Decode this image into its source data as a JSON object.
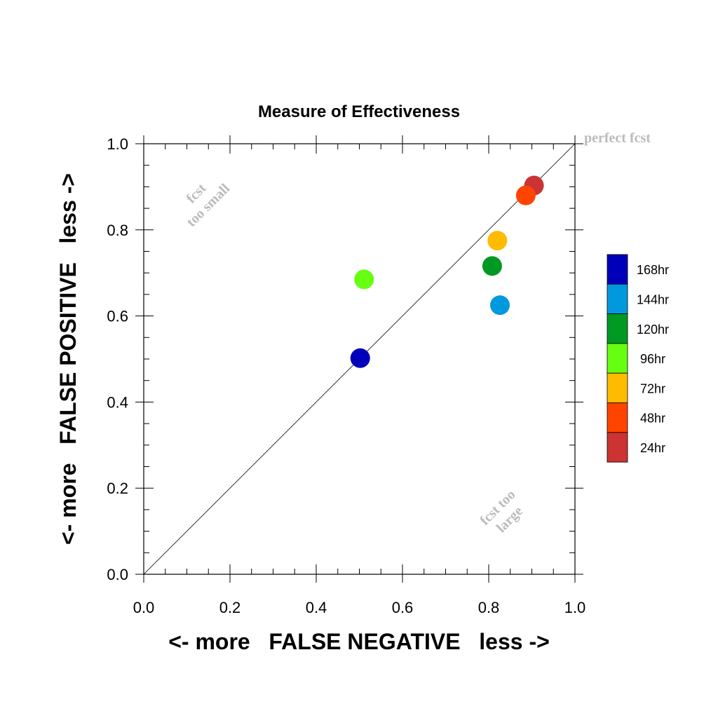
{
  "chart_data": {
    "type": "scatter",
    "title": "Measure of Effectiveness",
    "xlabel": "<- more   FALSE NEGATIVE   less ->",
    "ylabel": "<- more   FALSE POSITIVE   less ->",
    "xlim": [
      0.0,
      1.0
    ],
    "ylim": [
      0.0,
      1.0
    ],
    "xticks": [
      "0.0",
      "0.2",
      "0.4",
      "0.6",
      "0.8",
      "1.0"
    ],
    "yticks": [
      "0.0",
      "0.2",
      "0.4",
      "0.6",
      "0.8",
      "1.0"
    ],
    "grid": false,
    "reference_line": "diagonal y = x",
    "annotations": {
      "perfect": "perfect fcst",
      "too_small_1": "fcst",
      "too_small_2": "too small",
      "too_large_1": "fcst too",
      "too_large_2": "large"
    },
    "legend_position": "right",
    "series": [
      {
        "name": "168hr",
        "color": "#0000bb",
        "x": 0.502,
        "y": 0.502
      },
      {
        "name": "144hr",
        "color": "#0099dd",
        "x": 0.826,
        "y": 0.625
      },
      {
        "name": "120hr",
        "color": "#009922",
        "x": 0.808,
        "y": 0.716
      },
      {
        "name": "96hr",
        "color": "#66ff11",
        "x": 0.511,
        "y": 0.685
      },
      {
        "name": "72hr",
        "color": "#ffbb00",
        "x": 0.82,
        "y": 0.775
      },
      {
        "name": "48hr",
        "color": "#ff4400",
        "x": 0.886,
        "y": 0.88
      },
      {
        "name": "24hr",
        "color": "#cc3333",
        "x": 0.905,
        "y": 0.903
      }
    ]
  }
}
